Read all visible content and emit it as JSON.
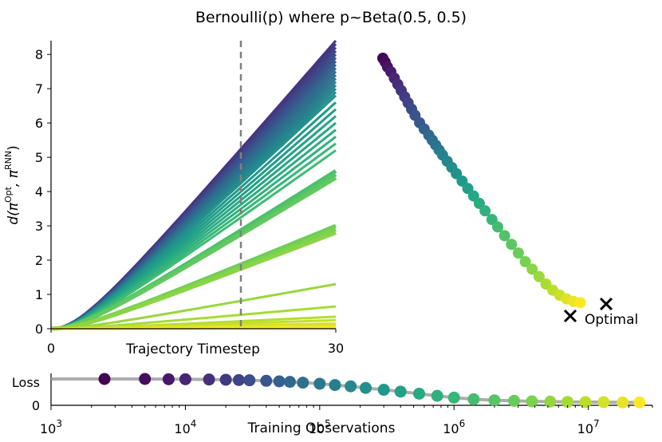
{
  "title": "Bernoulli(p) where p~Beta(0.5, 0.5)",
  "colors": {
    "viridis": [
      "#440154",
      "#482878",
      "#3e4989",
      "#31688e",
      "#26828e",
      "#1f9e89",
      "#35b779",
      "#6ece58",
      "#b5de2b",
      "#fde725"
    ],
    "reference_line": "#808080",
    "axis": "#000000"
  },
  "chart_data": [
    {
      "type": "line",
      "xlabel": "Trajectory Timestep",
      "ylabel": "d(πᴼᵖᵗ, πᴿᴺᴺ)",
      "ylabel_main": "d(π",
      "ylabel_sup1": "Opt",
      "ylabel_mid": ", π",
      "ylabel_sup2": "RNN",
      "ylabel_end": ")",
      "xlim": [
        0,
        30
      ],
      "ylim": [
        0,
        8.4
      ],
      "x_ticks": [
        "0",
        "30"
      ],
      "y_ticks": [
        "0",
        "1",
        "2",
        "3",
        "4",
        "5",
        "6",
        "7",
        "8"
      ],
      "vline_x": 20,
      "grid": false,
      "series_final_values": [
        8.4,
        8.3,
        8.2,
        8.1,
        8.0,
        7.9,
        7.8,
        7.7,
        7.6,
        7.5,
        7.4,
        7.3,
        7.2,
        7.1,
        7.0,
        6.9,
        6.8,
        6.6,
        6.4,
        6.2,
        6.0,
        5.8,
        5.6,
        5.4,
        5.2,
        4.6,
        4.5,
        4.4,
        3.0,
        2.9,
        2.8,
        1.3,
        0.65,
        0.35,
        0.25,
        0.15,
        0.1,
        0.05,
        0.03
      ]
    },
    {
      "type": "scatter",
      "annotation": "Optimal",
      "optimal_point": [
        0.0,
        0.0
      ],
      "points": [
        [
          0.0,
          1.0
        ],
        [
          0.01,
          0.985
        ],
        [
          0.02,
          0.965
        ],
        [
          0.035,
          0.945
        ],
        [
          0.05,
          0.92
        ],
        [
          0.065,
          0.895
        ],
        [
          0.08,
          0.87
        ],
        [
          0.095,
          0.845
        ],
        [
          0.11,
          0.82
        ],
        [
          0.125,
          0.795
        ],
        [
          0.14,
          0.77
        ],
        [
          0.16,
          0.74
        ],
        [
          0.18,
          0.715
        ],
        [
          0.2,
          0.69
        ],
        [
          0.215,
          0.67
        ],
        [
          0.23,
          0.65
        ],
        [
          0.245,
          0.63
        ],
        [
          0.26,
          0.61
        ],
        [
          0.28,
          0.585
        ],
        [
          0.3,
          0.56
        ],
        [
          0.32,
          0.535
        ],
        [
          0.345,
          0.505
        ],
        [
          0.37,
          0.475
        ],
        [
          0.395,
          0.445
        ],
        [
          0.42,
          0.415
        ],
        [
          0.445,
          0.385
        ],
        [
          0.475,
          0.35
        ],
        [
          0.5,
          0.32
        ],
        [
          0.53,
          0.285
        ],
        [
          0.56,
          0.25
        ],
        [
          0.59,
          0.215
        ],
        [
          0.62,
          0.18
        ],
        [
          0.65,
          0.15
        ],
        [
          0.68,
          0.12
        ],
        [
          0.71,
          0.09
        ],
        [
          0.74,
          0.065
        ],
        [
          0.77,
          0.045
        ],
        [
          0.8,
          0.03
        ],
        [
          0.83,
          0.02
        ],
        [
          0.86,
          0.015
        ]
      ]
    },
    {
      "type": "scatter",
      "xlabel": "Training Observations",
      "ylabel": "Loss",
      "x_scale": "log",
      "xlim": [
        1000,
        30000000
      ],
      "x_tick_exponents": [
        "3",
        "4",
        "5",
        "6",
        "7"
      ],
      "y_ticks": [
        "0"
      ],
      "x": [
        2500,
        5000,
        7500,
        10000,
        15000,
        20000,
        25000,
        30000,
        40000,
        50000,
        60000,
        75000,
        100000,
        130000,
        170000,
        220000,
        300000,
        400000,
        550000,
        750000,
        1000000,
        1400000,
        2000000,
        2800000,
        3800000,
        5200000,
        7000000,
        9500000,
        13000000,
        18000000,
        24000000
      ],
      "values": [
        1.0,
        1.0,
        0.99,
        0.99,
        0.98,
        0.97,
        0.96,
        0.95,
        0.93,
        0.91,
        0.89,
        0.86,
        0.82,
        0.77,
        0.72,
        0.66,
        0.59,
        0.52,
        0.44,
        0.36,
        0.29,
        0.23,
        0.19,
        0.17,
        0.15,
        0.14,
        0.13,
        0.12,
        0.12,
        0.11,
        0.11
      ]
    }
  ]
}
